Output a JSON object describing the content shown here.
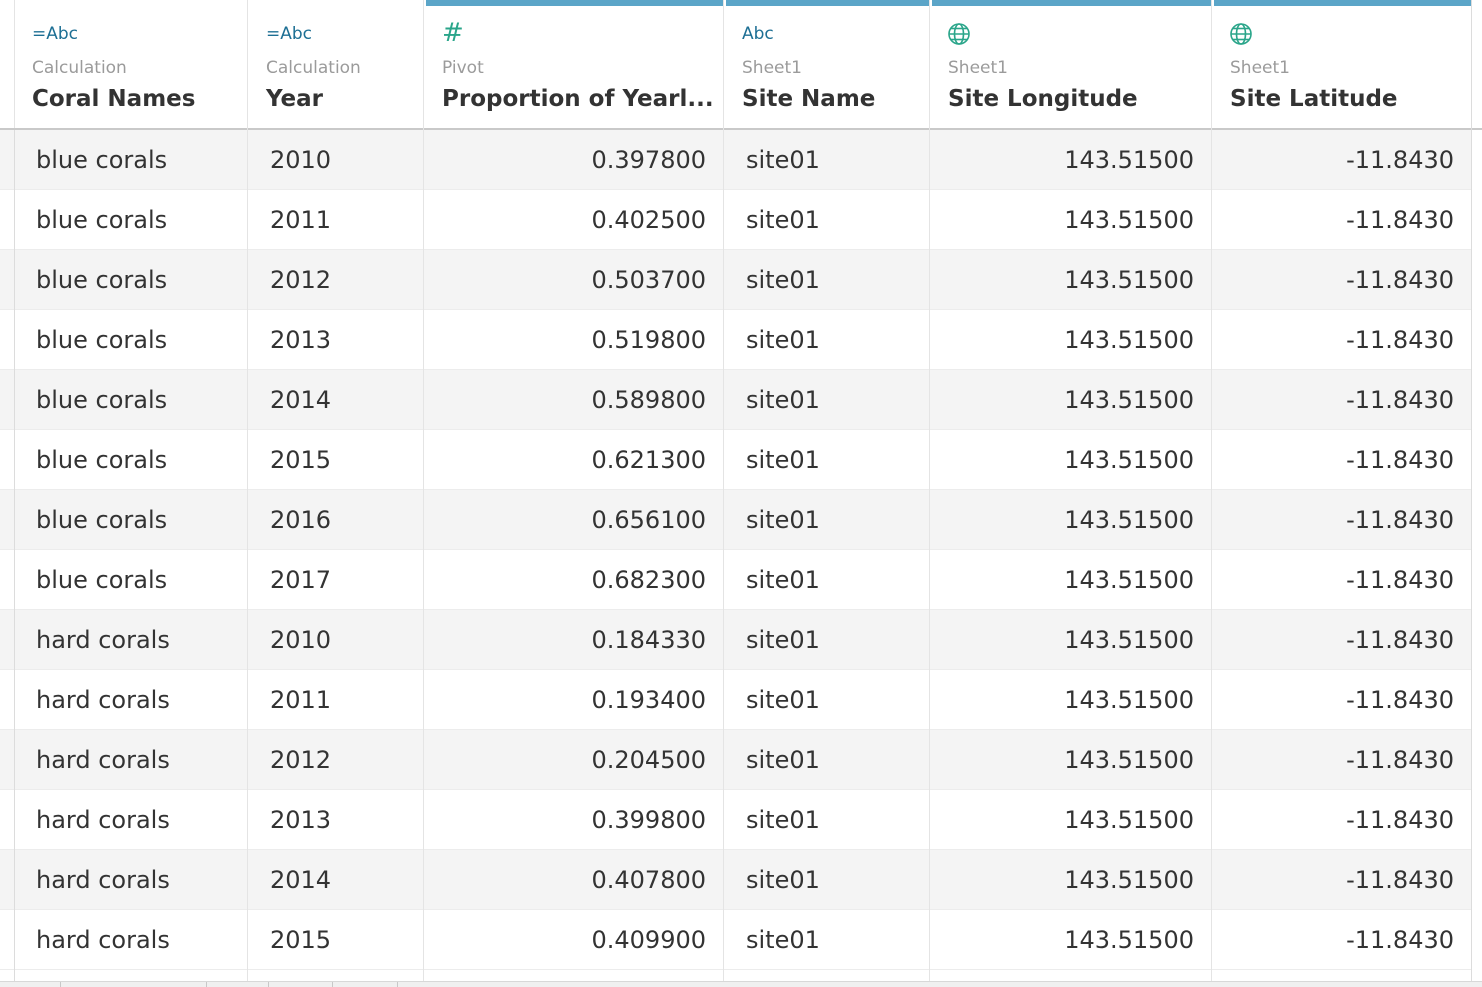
{
  "columns": [
    {
      "type_label": "=Abc",
      "source": "Calculation",
      "name": "Coral Names"
    },
    {
      "type_label": "=Abc",
      "source": "Calculation",
      "name": "Year"
    },
    {
      "type_label": "#",
      "source": "Pivot",
      "name": "Proportion of Yearl..."
    },
    {
      "type_label": "Abc",
      "source": "Sheet1",
      "name": "Site Name"
    },
    {
      "type_label": "globe",
      "source": "Sheet1",
      "name": "Site Longitude"
    },
    {
      "type_label": "globe",
      "source": "Sheet1",
      "name": "Site Latitude"
    }
  ],
  "rows": [
    [
      "blue corals",
      "2010",
      "0.397800",
      "site01",
      "143.51500",
      "-11.8430"
    ],
    [
      "blue corals",
      "2011",
      "0.402500",
      "site01",
      "143.51500",
      "-11.8430"
    ],
    [
      "blue corals",
      "2012",
      "0.503700",
      "site01",
      "143.51500",
      "-11.8430"
    ],
    [
      "blue corals",
      "2013",
      "0.519800",
      "site01",
      "143.51500",
      "-11.8430"
    ],
    [
      "blue corals",
      "2014",
      "0.589800",
      "site01",
      "143.51500",
      "-11.8430"
    ],
    [
      "blue corals",
      "2015",
      "0.621300",
      "site01",
      "143.51500",
      "-11.8430"
    ],
    [
      "blue corals",
      "2016",
      "0.656100",
      "site01",
      "143.51500",
      "-11.8430"
    ],
    [
      "blue corals",
      "2017",
      "0.682300",
      "site01",
      "143.51500",
      "-11.8430"
    ],
    [
      "hard corals",
      "2010",
      "0.184330",
      "site01",
      "143.51500",
      "-11.8430"
    ],
    [
      "hard corals",
      "2011",
      "0.193400",
      "site01",
      "143.51500",
      "-11.8430"
    ],
    [
      "hard corals",
      "2012",
      "0.204500",
      "site01",
      "143.51500",
      "-11.8430"
    ],
    [
      "hard corals",
      "2013",
      "0.399800",
      "site01",
      "143.51500",
      "-11.8430"
    ],
    [
      "hard corals",
      "2014",
      "0.407800",
      "site01",
      "143.51500",
      "-11.8430"
    ],
    [
      "hard corals",
      "2015",
      "0.409900",
      "site01",
      "143.51500",
      "-11.8430"
    ]
  ],
  "colors": {
    "header_accent": "#5ba5c8",
    "type_blue": "#1d6f94",
    "type_green": "#2aa58a"
  }
}
